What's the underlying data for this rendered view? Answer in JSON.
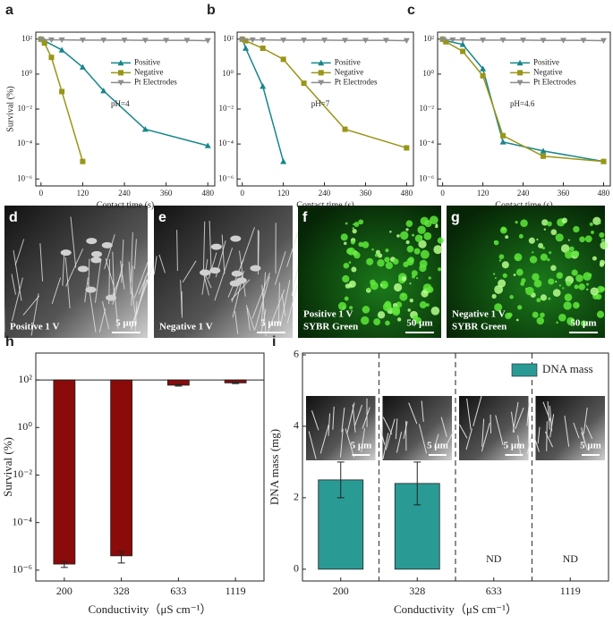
{
  "chart_data": [
    {
      "type": "line",
      "panel_label": "a",
      "ylabel": "Survival (%)",
      "xlabel": "Contact time (s)",
      "annotation": "pH=4",
      "log_y": true,
      "xlim": [
        -15,
        500
      ],
      "xticks": [
        0,
        120,
        240,
        360,
        480
      ],
      "ylim": [
        4e-07,
        250
      ],
      "yticks": [
        {
          "value": 1e-06,
          "label": "10⁻⁶"
        },
        {
          "value": 0.0001,
          "label": "10⁻⁴"
        },
        {
          "value": 0.01,
          "label": "10⁻²"
        },
        {
          "value": 1,
          "label": "10⁰"
        },
        {
          "value": 100,
          "label": "10²"
        }
      ],
      "series": [
        {
          "name": "Positive",
          "color": "#17868a",
          "marker": "triangle-up",
          "x": [
            0,
            10,
            60,
            120,
            180,
            300,
            480
          ],
          "values": [
            100,
            80,
            24,
            2.5,
            0.11,
            0.0007,
            8e-05
          ]
        },
        {
          "name": "Negative",
          "color": "#999517",
          "marker": "square",
          "x": [
            0,
            10,
            30,
            60,
            120
          ],
          "values": [
            100,
            60,
            9,
            0.1,
            1e-05
          ]
        },
        {
          "name": "Pt Electrodes",
          "color": "#8c8c8c",
          "marker": "triangle-down",
          "x": [
            0,
            30,
            60,
            120,
            180,
            240,
            300,
            360,
            420,
            480
          ],
          "values": [
            95,
            90,
            90,
            88,
            88,
            88,
            85,
            85,
            85,
            82
          ]
        }
      ]
    },
    {
      "type": "line",
      "panel_label": "b",
      "xlabel": "Contact time (s)",
      "annotation": "pH=7",
      "log_y": true,
      "xlim": [
        -15,
        500
      ],
      "xticks": [
        0,
        120,
        240,
        360,
        480
      ],
      "ylim": [
        4e-07,
        250
      ],
      "yticks": [
        {
          "value": 1e-06,
          "label": "10⁻⁶"
        },
        {
          "value": 0.0001,
          "label": "10⁻⁴"
        },
        {
          "value": 0.01,
          "label": "10⁻²"
        },
        {
          "value": 1,
          "label": "10⁰"
        },
        {
          "value": 100,
          "label": "10²"
        }
      ],
      "series": [
        {
          "name": "Positive",
          "color": "#17868a",
          "marker": "triangle-up",
          "x": [
            0,
            10,
            60,
            120
          ],
          "values": [
            100,
            30,
            0.2,
            1e-05
          ]
        },
        {
          "name": "Negative",
          "color": "#999517",
          "marker": "square",
          "x": [
            0,
            10,
            60,
            120,
            180,
            300,
            480
          ],
          "values": [
            100,
            80,
            30,
            7,
            0.3,
            0.0007,
            6e-05
          ]
        },
        {
          "name": "Pt Electrodes",
          "color": "#8c8c8c",
          "marker": "triangle-down",
          "x": [
            0,
            30,
            60,
            120,
            180,
            240,
            300,
            360,
            420,
            480
          ],
          "values": [
            95,
            90,
            90,
            88,
            88,
            88,
            85,
            85,
            85,
            82
          ]
        }
      ]
    },
    {
      "type": "line",
      "panel_label": "c",
      "xlabel": "Contact time (s)",
      "annotation": "pH=4.6",
      "log_y": true,
      "xlim": [
        -15,
        500
      ],
      "xticks": [
        0,
        120,
        240,
        360,
        480
      ],
      "ylim": [
        4e-07,
        250
      ],
      "yticks": [
        {
          "value": 1e-06,
          "label": "10⁻⁶"
        },
        {
          "value": 0.0001,
          "label": "10⁻⁴"
        },
        {
          "value": 0.01,
          "label": "10⁻²"
        },
        {
          "value": 1,
          "label": "10⁰"
        },
        {
          "value": 100,
          "label": "10²"
        }
      ],
      "series": [
        {
          "name": "Positive",
          "color": "#17868a",
          "marker": "triangle-up",
          "x": [
            0,
            10,
            60,
            120,
            180,
            300,
            480
          ],
          "values": [
            100,
            80,
            50,
            2,
            0.00013,
            4e-05,
            1e-05
          ]
        },
        {
          "name": "Negative",
          "color": "#999517",
          "marker": "square",
          "x": [
            0,
            10,
            60,
            120,
            180,
            300,
            480
          ],
          "values": [
            100,
            70,
            20,
            0.8,
            0.0003,
            2e-05,
            1e-05
          ]
        },
        {
          "name": "Pt Electrodes",
          "color": "#8c8c8c",
          "marker": "triangle-down",
          "x": [
            0,
            30,
            60,
            120,
            180,
            240,
            300,
            360,
            420,
            480
          ],
          "values": [
            95,
            90,
            90,
            88,
            88,
            88,
            85,
            85,
            85,
            82
          ]
        }
      ]
    },
    {
      "type": "hanging-bar",
      "panel_label": "h",
      "ylabel": "Survival (%)",
      "xlabel": "Conductivity（μS cm⁻¹）",
      "log_y": true,
      "color": "#8b0a0a",
      "baseline": 100,
      "categories": [
        "200",
        "328",
        "633",
        "1119"
      ],
      "values": [
        1.8e-06,
        4e-06,
        60,
        75
      ],
      "errors": [
        5e-07,
        2e-06,
        5,
        5
      ],
      "ylim": [
        3.5e-07,
        1350
      ],
      "yticks": [
        {
          "value": 1e-06,
          "label": "10⁻⁶"
        },
        {
          "value": 0.0001,
          "label": "10⁻⁴"
        },
        {
          "value": 0.01,
          "label": "10⁻²"
        },
        {
          "value": 1,
          "label": "10⁰"
        },
        {
          "value": 100,
          "label": "10²"
        }
      ]
    },
    {
      "type": "bar",
      "panel_label": "i",
      "ylabel": "DNA mass (mg)",
      "xlabel": "Conductivity（μS cm⁻¹）",
      "color": "#2a9a94",
      "series_name": "DNA mass",
      "categories": [
        "200",
        "328",
        "633",
        "1119"
      ],
      "values": [
        2.5,
        2.4,
        null,
        null
      ],
      "errors": [
        0.5,
        0.6,
        null,
        null
      ],
      "value_labels": [
        null,
        null,
        "ND",
        "ND"
      ],
      "inset_scales": [
        "5 μm",
        "5 μm",
        "5 μm",
        "5 μm"
      ],
      "ylim": [
        -0.33,
        6.05
      ],
      "yticks": [
        0,
        2,
        4,
        6
      ]
    }
  ],
  "images": [
    {
      "letter": "d",
      "lines": [
        "Positive  1 V"
      ],
      "scale": "5 μm",
      "kind": "sem"
    },
    {
      "letter": "e",
      "lines": [
        "Negative 1 V"
      ],
      "scale": "5 μm",
      "kind": "sem"
    },
    {
      "letter": "f",
      "lines": [
        "Positive  1 V",
        "SYBR Green"
      ],
      "scale": "50 μm",
      "kind": "fluorescence"
    },
    {
      "letter": "g",
      "lines": [
        "Negative   1 V",
        "SYBR Green"
      ],
      "scale": "50 μm",
      "kind": "fluorescence"
    }
  ]
}
